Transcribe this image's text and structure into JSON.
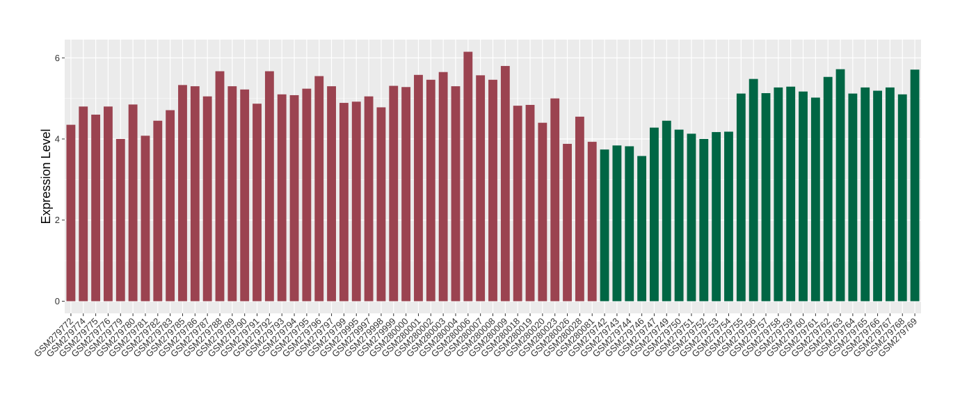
{
  "chart_data": {
    "type": "bar",
    "ylabel": "Expression Level",
    "xlabel": "",
    "ylim": [
      -0.3,
      6.45
    ],
    "yticks": [
      0,
      2,
      4,
      6
    ],
    "grid": true,
    "legend": "none",
    "colors": {
      "group1": "#9B4350",
      "group2": "#006644",
      "panel": "#EBEBEB",
      "grid": "#FFFFFF"
    },
    "categories": [
      "GSM279772",
      "GSM279774",
      "GSM279775",
      "GSM279776",
      "GSM279779",
      "GSM279780",
      "GSM279781",
      "GSM279782",
      "GSM279783",
      "GSM279785",
      "GSM279786",
      "GSM279787",
      "GSM279788",
      "GSM279789",
      "GSM279790",
      "GSM279791",
      "GSM279792",
      "GSM279793",
      "GSM279794",
      "GSM279795",
      "GSM279796",
      "GSM279797",
      "GSM279799",
      "GSM279995",
      "GSM279997",
      "GSM279998",
      "GSM279999",
      "GSM280000",
      "GSM280001",
      "GSM280002",
      "GSM280003",
      "GSM280004",
      "GSM280006",
      "GSM280007",
      "GSM280008",
      "GSM280009",
      "GSM280018",
      "GSM280019",
      "GSM280020",
      "GSM280023",
      "GSM280026",
      "GSM280028",
      "GSM280081",
      "GSM279742",
      "GSM279743",
      "GSM279744",
      "GSM279746",
      "GSM279747",
      "GSM279749",
      "GSM279750",
      "GSM279751",
      "GSM279752",
      "GSM279753",
      "GSM279754",
      "GSM279755",
      "GSM279756",
      "GSM279757",
      "GSM279758",
      "GSM279759",
      "GSM279760",
      "GSM279761",
      "GSM279762",
      "GSM279763",
      "GSM279764",
      "GSM279765",
      "GSM279766",
      "GSM279767",
      "GSM279768",
      "GSM279769"
    ],
    "values": [
      4.35,
      4.8,
      4.6,
      4.8,
      4.0,
      4.85,
      4.08,
      4.45,
      4.71,
      5.33,
      5.3,
      5.05,
      5.67,
      5.3,
      5.22,
      4.87,
      5.67,
      5.1,
      5.08,
      5.24,
      5.55,
      5.3,
      4.89,
      4.92,
      5.05,
      4.78,
      5.31,
      5.28,
      5.58,
      5.46,
      5.65,
      5.3,
      6.15,
      5.57,
      5.46,
      5.8,
      4.82,
      4.84,
      4.4,
      5.0,
      3.88,
      4.55,
      3.93,
      3.74,
      3.84,
      3.82,
      3.58,
      4.28,
      4.45,
      4.23,
      4.13,
      4.0,
      4.17,
      4.18,
      5.12,
      5.48,
      5.13,
      5.27,
      5.29,
      5.17,
      5.02,
      5.53,
      5.72,
      5.12,
      5.27,
      5.19,
      5.27,
      5.1,
      5.71
    ],
    "groups": [
      1,
      1,
      1,
      1,
      1,
      1,
      1,
      1,
      1,
      1,
      1,
      1,
      1,
      1,
      1,
      1,
      1,
      1,
      1,
      1,
      1,
      1,
      1,
      1,
      1,
      1,
      1,
      1,
      1,
      1,
      1,
      1,
      1,
      1,
      1,
      1,
      1,
      1,
      1,
      1,
      1,
      1,
      1,
      2,
      2,
      2,
      2,
      2,
      2,
      2,
      2,
      2,
      2,
      2,
      2,
      2,
      2,
      2,
      2,
      2,
      2,
      2,
      2,
      2,
      2,
      2,
      2,
      2,
      2
    ]
  }
}
